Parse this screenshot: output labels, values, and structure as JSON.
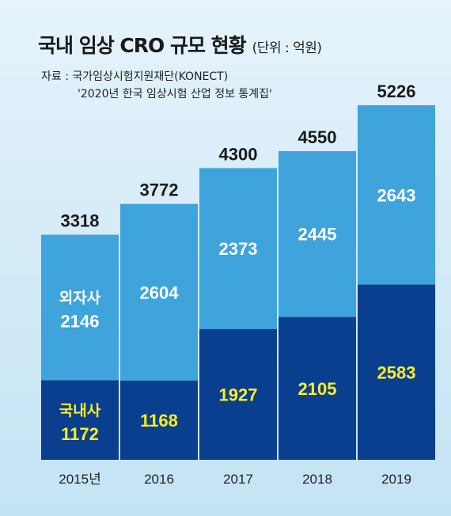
{
  "header": {
    "title": "국내 임상 CRO 규모 현황",
    "unit": "(단위 : 억원)"
  },
  "source": {
    "line1": "자료 : 국가임상시험지원재단(KONECT)",
    "line2": "'2020년 한국 임상시험 산업 정보 통계집'"
  },
  "chart_data": {
    "type": "bar",
    "stacked": true,
    "title": "국내 임상 CRO 규모 현황",
    "unit": "(단위 : 억원)",
    "categories": [
      "2015년",
      "2016",
      "2017",
      "2018",
      "2019"
    ],
    "series": [
      {
        "name": "국내사",
        "values": [
          1172,
          1168,
          1927,
          2105,
          2583
        ],
        "color": "#0a3f8f"
      },
      {
        "name": "외자사",
        "values": [
          2146,
          2604,
          2373,
          2445,
          2643
        ],
        "color": "#3fa4dc"
      }
    ],
    "totals": [
      3318,
      3772,
      4300,
      4550,
      5226
    ],
    "ylim": [
      0,
      5226
    ],
    "grid": false,
    "legend": "inline"
  }
}
